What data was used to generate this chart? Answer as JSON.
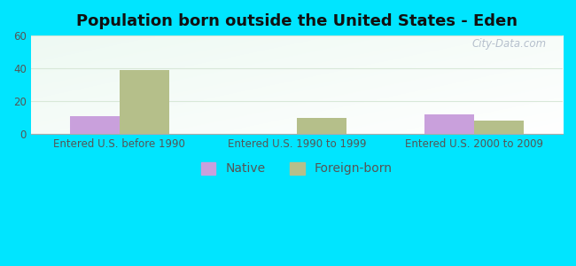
{
  "title": "Population born outside the United States - Eden",
  "categories": [
    "Entered U.S. before 1990",
    "Entered U.S. 1990 to 1999",
    "Entered U.S. 2000 to 2009"
  ],
  "native_values": [
    11,
    0,
    12
  ],
  "foreign_values": [
    39,
    10,
    8
  ],
  "native_color": "#c9a0dc",
  "foreign_color": "#b5bf8a",
  "ylim": [
    0,
    60
  ],
  "yticks": [
    0,
    20,
    40,
    60
  ],
  "bar_width": 0.28,
  "title_fontsize": 13,
  "tick_fontsize": 8.5,
  "legend_fontsize": 10,
  "outer_bg": "#00e5ff",
  "grid_color": "#d8e8d8",
  "watermark": "City-Data.com"
}
